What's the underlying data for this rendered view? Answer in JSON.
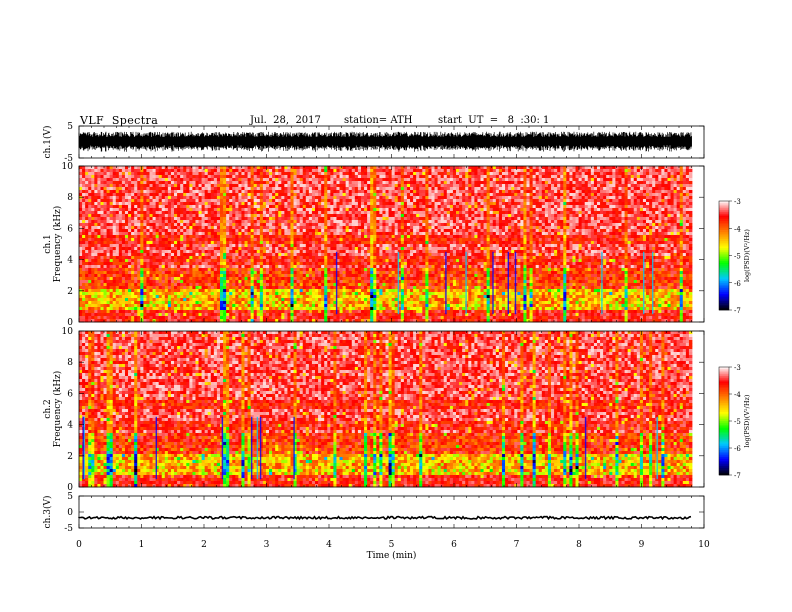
{
  "header": {
    "title": "VLF  Spectra",
    "date": "Jul.  28,  2017",
    "station": "station= ATH",
    "start_ut": "start  UT  =   8  :30: 1"
  },
  "chart_data": [
    {
      "type": "line",
      "panel": "ch1-waveform",
      "ylabel": "ch.1(V)",
      "ytick_labels": [
        "5",
        "-5"
      ],
      "ylim": [
        -5,
        5
      ],
      "xlim": [
        0,
        10
      ],
      "description_series": {
        "amplitude_range": [
          -3.2,
          3.2
        ]
      }
    },
    {
      "type": "heatmap",
      "panel": "ch1-spectrogram",
      "ylabel": "ch.1\nFrequency  (kHz)",
      "ytick_labels": [
        "0",
        "2",
        "4",
        "6",
        "8",
        "10"
      ],
      "ylim": [
        0,
        10
      ],
      "xlim": [
        0,
        9.8
      ],
      "colorbar": {
        "label": "log(PSD)(V²/Hz)",
        "tick_labels": [
          "-3",
          "-4",
          "-5",
          "-6",
          "-7"
        ],
        "range": [
          -7,
          -3
        ]
      }
    },
    {
      "type": "heatmap",
      "panel": "ch2-spectrogram",
      "ylabel": "ch.2\nFrequency  (kHz)",
      "ytick_labels": [
        "0",
        "2",
        "4",
        "6",
        "8",
        "10"
      ],
      "ylim": [
        0,
        10
      ],
      "xlim": [
        0,
        9.8
      ],
      "colorbar": {
        "label": "log(PSD)(V²/Hz)",
        "tick_labels": [
          "-3",
          "-4",
          "-5",
          "-6",
          "-7"
        ],
        "range": [
          -7,
          -3
        ]
      }
    },
    {
      "type": "line",
      "panel": "ch3-waveform",
      "ylabel": "ch.3(V)",
      "ytick_labels": [
        "5",
        "0",
        "-5"
      ],
      "ylim": [
        -5,
        5
      ],
      "xlim": [
        0,
        10
      ],
      "description_series": {
        "level": -1.8
      },
      "xlabel": "Time  (min)",
      "xtick_labels": [
        "0",
        "1",
        "2",
        "3",
        "4",
        "5",
        "6",
        "7",
        "8",
        "9",
        "10"
      ]
    }
  ],
  "colors": {
    "background": "#ffffff",
    "axis": "#000000",
    "colormap": [
      "#000000",
      "#0000ff",
      "#00c8ff",
      "#00ff00",
      "#ffff00",
      "#ff8000",
      "#ff0000",
      "#ffffff"
    ]
  }
}
